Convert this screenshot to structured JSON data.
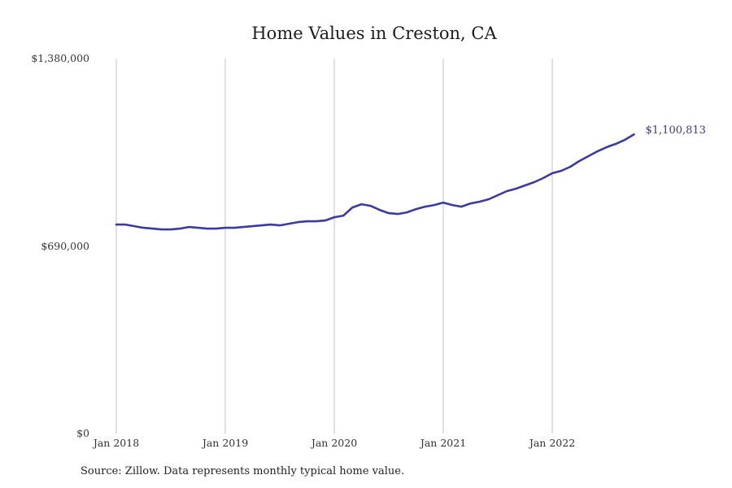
{
  "chart": {
    "title": "Home Values in Creston, CA",
    "y_ticks": [
      "$1,380,000",
      "$690,000",
      "$0"
    ],
    "x_ticks": [
      "Jan 2018",
      "Jan 2019",
      "Jan 2020",
      "Jan 2021",
      "Jan 2022"
    ],
    "end_label": "$1,100,813",
    "source_note": "Source: Zillow. Data represents monthly typical home value.",
    "colors": {
      "line": "#3b3aa0",
      "end_label_text": "#3a3a80",
      "gridline": "#c2c2c2",
      "tick_text": "#333333",
      "title_text": "#1c1c1c"
    }
  },
  "chart_data": {
    "type": "line",
    "title": "Home Values in Creston, CA",
    "x_start": "2018-01",
    "x_end": "2022-10",
    "x_tick_labels": [
      "Jan 2018",
      "Jan 2019",
      "Jan 2020",
      "Jan 2021",
      "Jan 2022"
    ],
    "y_tick_labels": [
      "$0",
      "$690,000",
      "$1,380,000"
    ],
    "y_tick_values": [
      0,
      690000,
      1380000
    ],
    "ylim": [
      0,
      1380000
    ],
    "grid": "vertical-only",
    "legend": "none",
    "end_annotation": "$1,100,813",
    "source": "Source: Zillow. Data represents monthly typical home value.",
    "series": [
      {
        "name": "Monthly typical home value",
        "values": [
          769000,
          769000,
          763000,
          757000,
          754000,
          751000,
          751000,
          754000,
          760000,
          757000,
          754000,
          754000,
          757000,
          757000,
          760000,
          763000,
          766000,
          769000,
          766000,
          772000,
          778000,
          781000,
          781000,
          784000,
          796000,
          802000,
          832000,
          844000,
          838000,
          823000,
          811000,
          808000,
          814000,
          826000,
          835000,
          841000,
          850000,
          841000,
          835000,
          847000,
          853000,
          862000,
          877000,
          892000,
          901000,
          913000,
          925000,
          940000,
          958000,
          967000,
          982000,
          1003000,
          1021000,
          1039000,
          1054000,
          1066000,
          1081000,
          1100813
        ]
      }
    ]
  }
}
